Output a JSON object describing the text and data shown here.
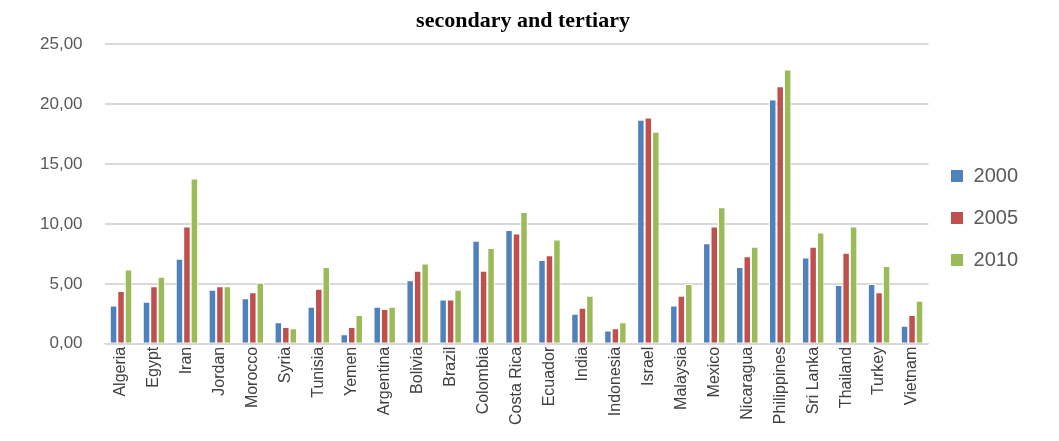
{
  "chart_data": {
    "type": "bar",
    "title": "secondary and tertiary",
    "categories": [
      "Algeria",
      "Egypt",
      "Iran",
      "Jordan",
      "Morocco",
      "Syria",
      "Tunisia",
      "Yemen",
      "Argentina",
      "Bolivia",
      "Brazil",
      "Colombia",
      "Costa Rica",
      "Ecuador",
      "India",
      "Indonesia",
      "Israel",
      "Malaysia",
      "Mexico",
      "Nicaragua",
      "Philippines",
      "Sri Lanka",
      "Thailand",
      "Turkey",
      "Vietnam"
    ],
    "series": [
      {
        "name": "2000",
        "color": "#4f81bd",
        "values": [
          3.2,
          3.5,
          7.1,
          4.5,
          3.8,
          1.8,
          3.1,
          0.8,
          3.1,
          5.3,
          3.7,
          8.6,
          9.5,
          7.0,
          2.5,
          1.1,
          18.7,
          3.2,
          8.4,
          6.4,
          20.4,
          7.2,
          4.9,
          5.0,
          1.5
        ]
      },
      {
        "name": "2005",
        "color": "#c0504d",
        "values": [
          4.4,
          4.8,
          9.8,
          4.8,
          4.3,
          1.4,
          4.6,
          1.4,
          2.9,
          6.1,
          3.7,
          6.1,
          9.2,
          7.4,
          3.0,
          1.3,
          18.9,
          4.0,
          9.8,
          7.3,
          21.5,
          8.1,
          7.6,
          4.3,
          2.4
        ]
      },
      {
        "name": "2010",
        "color": "#9bbb59",
        "values": [
          6.2,
          5.6,
          13.8,
          4.8,
          5.1,
          1.3,
          6.4,
          2.4,
          3.1,
          6.7,
          4.5,
          8.0,
          11.0,
          8.7,
          4.0,
          1.8,
          17.7,
          5.0,
          11.4,
          8.1,
          22.9,
          9.3,
          9.8,
          6.5,
          3.6
        ]
      }
    ],
    "ylim": [
      0,
      25
    ],
    "yticks": [
      {
        "value": 0,
        "label": "0,00"
      },
      {
        "value": 5,
        "label": "5,00"
      },
      {
        "value": 10,
        "label": "10,00"
      },
      {
        "value": 15,
        "label": "15,00"
      },
      {
        "value": 20,
        "label": "20,00"
      },
      {
        "value": 25,
        "label": "25,00"
      }
    ],
    "grid": "y",
    "legend": "right"
  }
}
